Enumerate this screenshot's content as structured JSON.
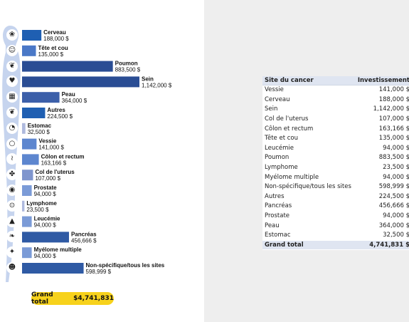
{
  "chart_data": {
    "type": "bar",
    "orientation": "horizontal",
    "categories": [
      "Cerveau",
      "Tête et cou",
      "Poumon",
      "Sein",
      "Peau",
      "Autres",
      "Estomac",
      "Vessie",
      "Côlon et rectum",
      "Col de l'uterus",
      "Prostate",
      "Lymphome",
      "Leucémie",
      "Pancréas",
      "Myélome multiple",
      "Non-spécifique/tous les sites"
    ],
    "values": [
      188000,
      135000,
      883500,
      1142000,
      364000,
      224500,
      32500,
      141000,
      163166,
      107000,
      94000,
      23500,
      94000,
      456666,
      94000,
      598999
    ],
    "value_labels": [
      "188,000 $",
      "135,000 $",
      "883,500 $",
      "1,142,000 $",
      "364,000 $",
      "224,500 $",
      "32,500 $",
      "141,000 $",
      "163,166 $",
      "107,000 $",
      "94,000 $",
      "23,500 $",
      "94,000 $",
      "456,666 $",
      "94,000 $",
      "598,999 $"
    ],
    "bar_colors": [
      "#1f5fb2",
      "#4a78c7",
      "#2a4d94",
      "#2a4d94",
      "#3c5fa9",
      "#1f5fb2",
      "#aeb9de",
      "#5d86cf",
      "#5d86cf",
      "#7f95cd",
      "#7b9bd7",
      "#aeb9de",
      "#7b9bd7",
      "#2f5aa4",
      "#7b9bd7",
      "#2f5aa4"
    ],
    "icons": [
      "brain-icon",
      "head-icon",
      "lungs-icon",
      "breast-icon",
      "skin-icon",
      "ribbon-icon",
      "stomach-icon",
      "bladder-icon",
      "colon-icon",
      "uterus-icon",
      "prostate-icon",
      "lymph-icon",
      "blood-drop-icon",
      "pancreas-icon",
      "bone-icon",
      "body-icon"
    ],
    "xlim": [
      0,
      1142000
    ]
  },
  "grand_total": {
    "label": "Grand total",
    "value": "$4,741,831"
  },
  "table": {
    "headers": [
      "Site du cancer",
      "Investissement"
    ],
    "rows": [
      [
        "Vessie",
        "141,000 $"
      ],
      [
        "Cerveau",
        "188,000 $"
      ],
      [
        "Sein",
        "1,142,000 $"
      ],
      [
        "Col de l'uterus",
        "107,000 $"
      ],
      [
        "Côlon et rectum",
        "163,166 $"
      ],
      [
        "Tête et cou",
        "135,000 $"
      ],
      [
        "Leucémie",
        "94,000 $"
      ],
      [
        "Poumon",
        "883,500 $"
      ],
      [
        "Lymphome",
        "23,500 $"
      ],
      [
        "Myélome multiple",
        "94,000 $"
      ],
      [
        "Non-spécifique/tous les sites",
        "598,999 $"
      ],
      [
        "Autres",
        "224,500 $"
      ],
      [
        "Pancréas",
        "456,666 $"
      ],
      [
        "Prostate",
        "94,000 $"
      ],
      [
        "Peau",
        "364,000 $"
      ],
      [
        "Estomac",
        "32,500 $"
      ]
    ],
    "total_label": "Grand total",
    "total_value": "4,741,831 $"
  },
  "colors": {
    "silhouette": "#c6d4ee",
    "grand_total_bg": "#f7d21c",
    "table_header_bg": "#dfe5f1",
    "right_panel_bg": "#eeeeee"
  }
}
